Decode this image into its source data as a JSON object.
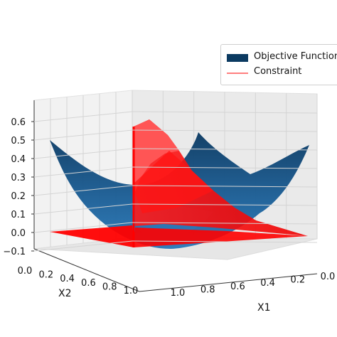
{
  "chart_data": {
    "type": "surface3d",
    "legend": {
      "placement": "top-right",
      "entries": [
        {
          "label": "Objective Function",
          "color": "#0b3a61",
          "style": "patch"
        },
        {
          "label": "Constraint",
          "color": "#ff7f7f",
          "style": "line"
        }
      ]
    },
    "axes": {
      "x1": {
        "label": "X1",
        "ticks": [
          "1.0",
          "0.8",
          "0.6",
          "0.4",
          "0.2",
          "0.0"
        ],
        "range": [
          0,
          1
        ]
      },
      "x2": {
        "label": "X2",
        "ticks": [
          "0.0",
          "0.2",
          "0.4",
          "0.6",
          "0.8",
          "1.0"
        ],
        "range": [
          0,
          1
        ]
      },
      "z": {
        "label": "",
        "ticks": [
          "−0.1",
          "0.0",
          "0.1",
          "0.2",
          "0.3",
          "0.4",
          "0.5",
          "0.6"
        ],
        "range": [
          -0.1,
          0.65
        ]
      }
    },
    "grid": true,
    "series": [
      {
        "name": "Objective Function",
        "kind": "surface",
        "shape": "bowl",
        "min": 0.0,
        "max": 0.55,
        "color": "#1f5f93"
      },
      {
        "name": "Constraint",
        "kind": "surface",
        "shape": "ridge",
        "min": 0.0,
        "max": 0.57,
        "color": "#ff0000"
      }
    ]
  }
}
